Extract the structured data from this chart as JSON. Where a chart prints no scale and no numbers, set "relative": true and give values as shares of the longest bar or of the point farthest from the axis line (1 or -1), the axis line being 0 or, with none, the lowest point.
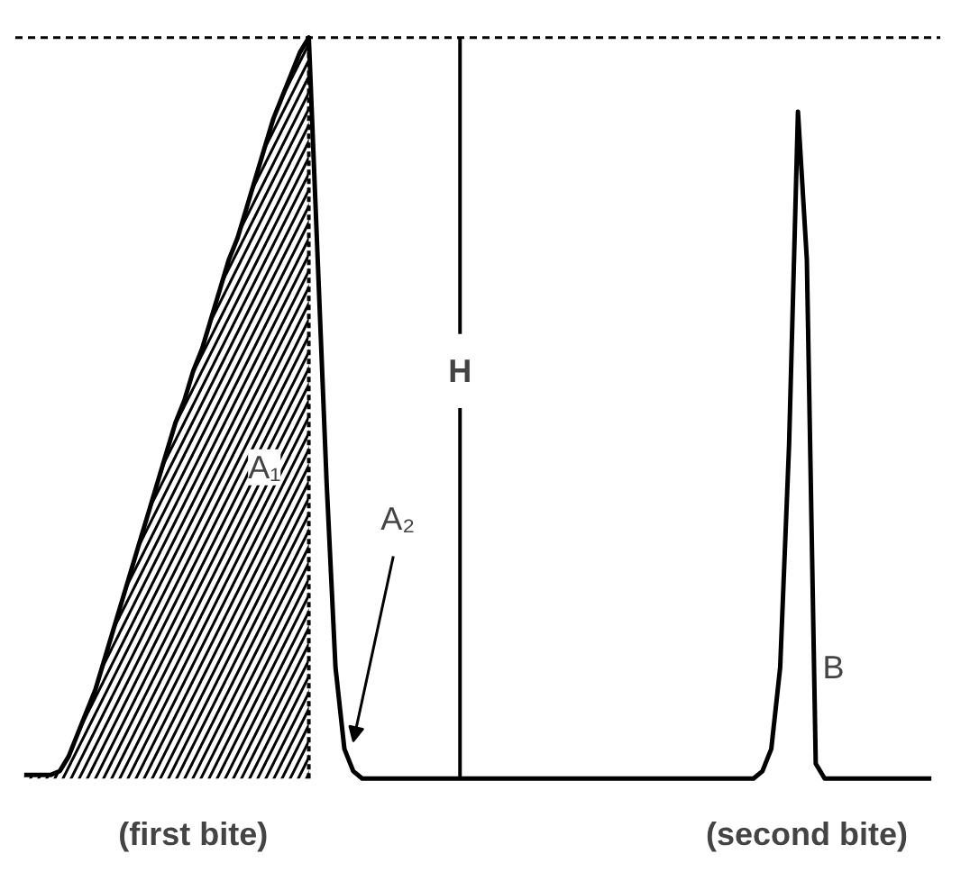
{
  "chart_data": {
    "type": "line",
    "relative": true,
    "tick_labels": false,
    "grid": false,
    "categories": [
      null,
      null,
      null,
      null,
      null,
      null,
      null,
      null,
      null,
      null,
      null,
      null,
      null,
      null,
      null,
      null,
      null,
      null,
      null,
      null,
      null,
      null,
      null,
      null,
      null,
      null,
      null,
      null,
      null,
      null,
      null,
      null,
      null,
      null,
      null,
      null,
      null,
      null,
      null,
      null,
      null,
      null,
      null,
      null,
      null,
      null,
      null,
      null,
      null,
      null,
      null,
      null,
      null,
      null,
      null,
      null,
      null,
      null,
      null,
      null,
      null,
      null,
      null,
      null,
      null,
      null,
      null,
      null,
      null,
      null,
      null,
      null,
      null,
      null,
      null,
      null,
      null,
      null,
      null,
      null,
      null,
      null,
      null,
      null,
      null,
      null,
      null,
      null,
      null,
      null,
      null,
      null,
      null,
      null,
      null,
      null,
      null,
      null,
      null,
      null,
      null,
      null,
      null
    ],
    "series": [
      {
        "type": "area",
        "color": "#000000",
        "values": [
          0.005,
          0.005,
          0.005,
          0.005,
          0.01,
          0.03,
          0.06,
          0.09,
          0.12,
          0.16,
          0.2,
          0.24,
          0.28,
          0.32,
          0.36,
          0.4,
          0.44,
          0.48,
          0.51,
          0.55,
          0.58,
          0.62,
          0.66,
          0.7,
          0.73,
          0.77,
          0.81,
          0.85,
          0.89,
          0.92,
          0.95,
          0.98,
          1.0,
          null,
          null,
          null,
          null,
          null,
          null,
          null,
          null,
          null,
          null,
          null,
          null,
          null,
          null,
          null,
          null,
          null,
          null,
          null,
          null,
          null,
          null,
          null,
          null,
          null,
          null,
          null,
          null,
          null,
          null,
          null,
          null,
          null,
          null,
          null,
          null,
          null,
          null,
          null,
          null,
          null,
          null,
          null,
          null,
          null,
          null,
          null,
          null,
          null,
          null,
          null,
          null,
          null,
          null,
          null,
          null,
          null,
          null,
          null,
          null,
          null,
          null,
          null,
          null,
          null,
          null,
          null,
          null,
          null,
          null
        ]
      },
      {
        "color": "#000000",
        "values": [
          0.005,
          0.005,
          0.005,
          0.005,
          0.01,
          0.03,
          0.06,
          0.09,
          0.12,
          0.16,
          0.2,
          0.24,
          0.28,
          0.32,
          0.36,
          0.4,
          0.44,
          0.48,
          0.51,
          0.55,
          0.58,
          0.62,
          0.66,
          0.7,
          0.73,
          0.77,
          0.81,
          0.85,
          0.89,
          0.92,
          0.95,
          0.98,
          1.0,
          0.7,
          0.4,
          0.15,
          0.04,
          0.01,
          0,
          0,
          0,
          0,
          0,
          0,
          0,
          0,
          0,
          0,
          0,
          0,
          0,
          0,
          0,
          0,
          0,
          0,
          0,
          0,
          0,
          0,
          0,
          0,
          0,
          0,
          0,
          0,
          0,
          0,
          0,
          0,
          0,
          0,
          0,
          0,
          0,
          0,
          0,
          0,
          0,
          0,
          0,
          0,
          0,
          0.01,
          0.04,
          0.15,
          0.45,
          0.9,
          0.7,
          0.02,
          0,
          0,
          0,
          0,
          0,
          0,
          0,
          0,
          0,
          0,
          0,
          0,
          0
        ]
      }
    ],
    "ref_lines": [
      {
        "axis": "y",
        "value": 1,
        "color": "#000000",
        "line_style": "dashed"
      }
    ],
    "annotations": [
      "A₁",
      "A₂",
      "B",
      "(first bite)",
      "(second bite)",
      "H"
    ]
  }
}
